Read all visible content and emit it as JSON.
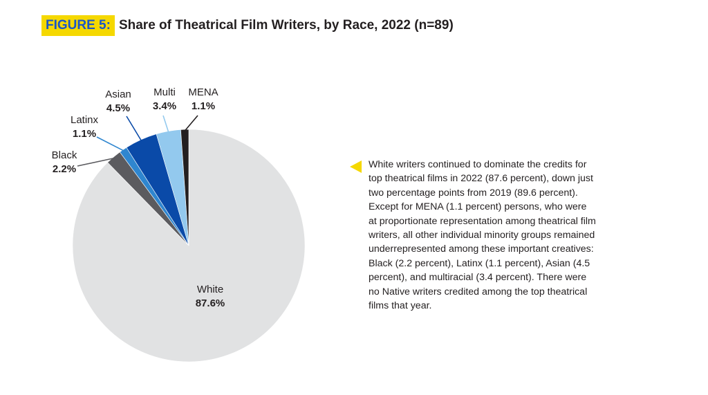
{
  "figure": {
    "tag": "FIGURE 5:",
    "title": "Share of Theatrical Film Writers, by Race, 2022 (n=89)"
  },
  "chart_data": {
    "type": "pie",
    "title": "Share of Theatrical Film Writers, by Race, 2022 (n=89)",
    "start": "12 o'clock, clockwise",
    "slices": [
      {
        "label": "White",
        "value": 87.6,
        "value_label": "87.6%",
        "color": "#e1e2e3"
      },
      {
        "label": "Black",
        "value": 2.2,
        "value_label": "2.2%",
        "color": "#5b5b5f"
      },
      {
        "label": "Latinx",
        "value": 1.1,
        "value_label": "1.1%",
        "color": "#2f86cf"
      },
      {
        "label": "Asian",
        "value": 4.5,
        "value_label": "4.5%",
        "color": "#0a4aa8"
      },
      {
        "label": "Multi",
        "value": 3.4,
        "value_label": "3.4%",
        "color": "#93c9ee"
      },
      {
        "label": "MENA",
        "value": 1.1,
        "value_label": "1.1%",
        "color": "#231f20"
      }
    ]
  },
  "note": {
    "text": "White writers continued to dominate the credits for top theatrical films in 2022 (87.6 percent), down just two percentage points from 2019 (89.6 percent). Except for MENA (1.1 percent) persons, who were at proportionate representation among theatrical film writers, all other individual minority groups remained underrepresented among these important creatives: Black (2.2 percent), Latinx (1.1 percent), Asian (4.5 percent), and multiracial (3.4 percent). There were no Native writers credited among the top theatrical films that year.",
    "arrow_color": "#f5d800"
  }
}
